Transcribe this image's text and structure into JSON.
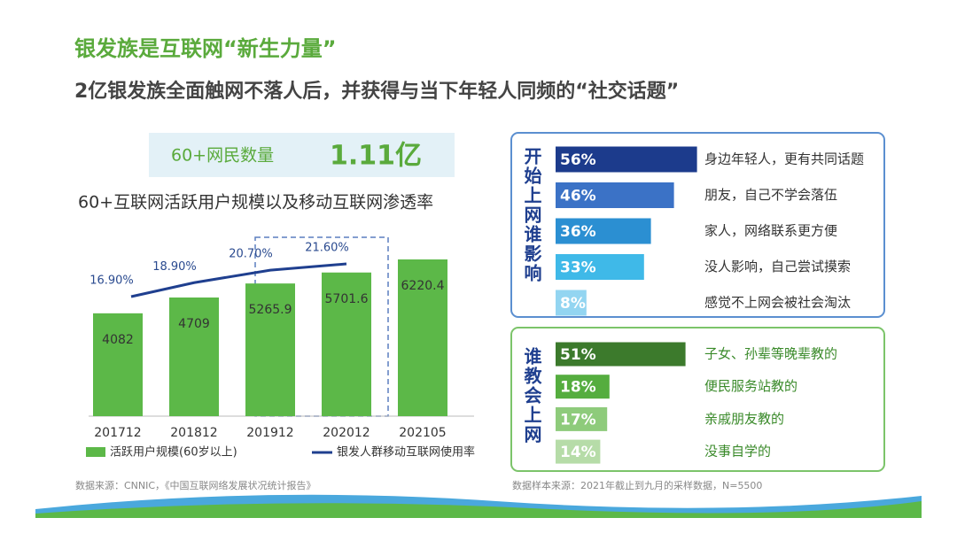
{
  "header": {
    "title": "银发族是互联网“新生力量”",
    "subtitle": "2亿银发族全面触网不落人后，并获得与当下年轻人同频的“社交话题”"
  },
  "stat": {
    "label": "60+网民数量",
    "value": "1.11亿"
  },
  "sources": [
    "数据来源：CNNIC，《中国互联网络发展状况统计报告》",
    "数据样本来源：2021年截止到九月的采样数据，N=5500"
  ],
  "chart_data": [
    {
      "type": "bar",
      "title": "60+互联网活跃用户规模以及移动互联网渗透率",
      "categories": [
        "201712",
        "201812",
        "201912",
        "202012",
        "202105"
      ],
      "series": [
        {
          "name": "活跃用户规模(60岁以上)",
          "color": "#5cb848",
          "values": [
            4082,
            4709,
            5265.9,
            5701.6,
            6220.4
          ]
        },
        {
          "name": "银发人群移动互联网使用率",
          "color": "#1f3f8f",
          "type": "line",
          "values": [
            16.9,
            18.9,
            20.7,
            21.6,
            null
          ],
          "value_labels": [
            "16.90%",
            "18.90%",
            "20.70%",
            "21.60%",
            null
          ]
        }
      ]
    },
    {
      "type": "hbar",
      "title": "开始上网谁影响",
      "categories": [
        "身边年轻人，更有共同话题",
        "朋友，自己不学会落伍",
        "家人，网络联系更方便",
        "没人影响，自己尝试摸索",
        "感觉不上网会被社会淘汰"
      ],
      "values": [
        56,
        46,
        36,
        33,
        8
      ],
      "value_labels": [
        "56%",
        "46%",
        "36%",
        "33%",
        "8%"
      ],
      "colors": [
        "#1c3b8c",
        "#3b72c6",
        "#2b8fd2",
        "#3fb9e8",
        "#93d5f1"
      ]
    },
    {
      "type": "hbar",
      "title": "谁教会上网",
      "categories": [
        "子女、孙辈等晚辈教的",
        "便民服务站教的",
        "亲戚朋友教的",
        "没事自学的"
      ],
      "values": [
        51,
        18,
        17,
        14
      ],
      "value_labels": [
        "51%",
        "18%",
        "17%",
        "14%"
      ],
      "colors": [
        "#3c7a2c",
        "#55ad3f",
        "#8ecb7b",
        "#b6dca8"
      ]
    }
  ]
}
